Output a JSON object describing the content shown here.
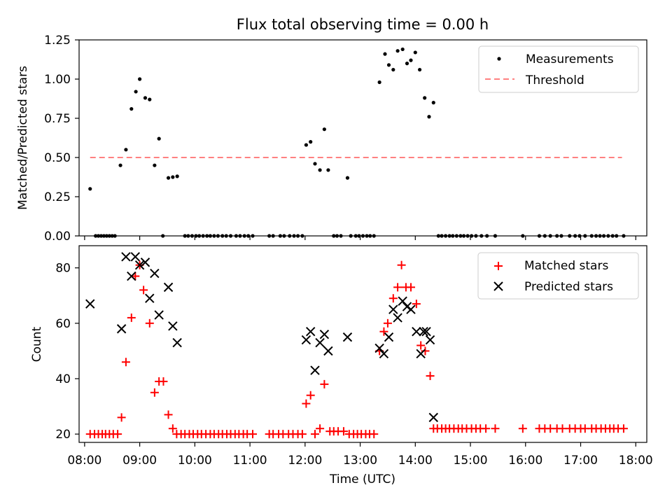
{
  "chart_data": [
    {
      "type": "scatter",
      "title": "Flux total observing time = 0.00 h",
      "xlabel": "",
      "ylabel": "Matched/Predicted stars",
      "xlim": [
        7.9,
        18.2
      ],
      "ylim": [
        0,
        1.25
      ],
      "yticks": [
        "0.00",
        "0.25",
        "0.50",
        "0.75",
        "1.00",
        "1.25"
      ],
      "legend": {
        "position": "top-right",
        "entries": [
          "Measurements",
          "Threshold"
        ]
      },
      "threshold": {
        "name": "Threshold",
        "value": 0.5,
        "x_range": [
          8.1,
          17.75
        ],
        "color": "#ff8080"
      },
      "series": [
        {
          "name": "Measurements",
          "color": "#000000",
          "points": [
            [
              8.1,
              0.3
            ],
            [
              8.2,
              0.0
            ],
            [
              8.25,
              0.0
            ],
            [
              8.3,
              0.0
            ],
            [
              8.35,
              0.0
            ],
            [
              8.4,
              0.0
            ],
            [
              8.45,
              0.0
            ],
            [
              8.5,
              0.0
            ],
            [
              8.55,
              0.0
            ],
            [
              8.65,
              0.45
            ],
            [
              8.75,
              0.55
            ],
            [
              8.85,
              0.81
            ],
            [
              8.93,
              0.92
            ],
            [
              9.0,
              1.0
            ],
            [
              9.1,
              0.88
            ],
            [
              9.18,
              0.87
            ],
            [
              9.27,
              0.45
            ],
            [
              9.35,
              0.62
            ],
            [
              9.42,
              0.0
            ],
            [
              9.52,
              0.37
            ],
            [
              9.6,
              0.375
            ],
            [
              9.68,
              0.38
            ],
            [
              9.82,
              0.0
            ],
            [
              9.88,
              0.0
            ],
            [
              9.95,
              0.0
            ],
            [
              10.02,
              0.0
            ],
            [
              10.08,
              0.0
            ],
            [
              10.15,
              0.0
            ],
            [
              10.22,
              0.0
            ],
            [
              10.28,
              0.0
            ],
            [
              10.35,
              0.0
            ],
            [
              10.42,
              0.0
            ],
            [
              10.5,
              0.0
            ],
            [
              10.57,
              0.0
            ],
            [
              10.65,
              0.0
            ],
            [
              10.75,
              0.0
            ],
            [
              10.82,
              0.0
            ],
            [
              10.9,
              0.0
            ],
            [
              10.97,
              0.0
            ],
            [
              11.05,
              0.0
            ],
            [
              11.35,
              0.0
            ],
            [
              11.42,
              0.0
            ],
            [
              11.55,
              0.0
            ],
            [
              11.62,
              0.0
            ],
            [
              11.72,
              0.0
            ],
            [
              11.8,
              0.0
            ],
            [
              11.87,
              0.0
            ],
            [
              11.95,
              0.0
            ],
            [
              12.02,
              0.58
            ],
            [
              12.1,
              0.6
            ],
            [
              12.18,
              0.46
            ],
            [
              12.27,
              0.42
            ],
            [
              12.35,
              0.68
            ],
            [
              12.42,
              0.42
            ],
            [
              12.52,
              0.0
            ],
            [
              12.58,
              0.0
            ],
            [
              12.65,
              0.0
            ],
            [
              12.77,
              0.37
            ],
            [
              12.83,
              0.0
            ],
            [
              12.92,
              0.0
            ],
            [
              12.98,
              0.0
            ],
            [
              13.05,
              0.0
            ],
            [
              13.12,
              0.0
            ],
            [
              13.18,
              0.0
            ],
            [
              13.25,
              0.0
            ],
            [
              13.35,
              0.98
            ],
            [
              13.45,
              1.16
            ],
            [
              13.52,
              1.09
            ],
            [
              13.6,
              1.06
            ],
            [
              13.68,
              1.18
            ],
            [
              13.77,
              1.19
            ],
            [
              13.85,
              1.1
            ],
            [
              13.92,
              1.12
            ],
            [
              14.0,
              1.17
            ],
            [
              14.08,
              1.06
            ],
            [
              14.17,
              0.88
            ],
            [
              14.25,
              0.76
            ],
            [
              14.33,
              0.85
            ],
            [
              14.42,
              0.0
            ],
            [
              14.48,
              0.0
            ],
            [
              14.55,
              0.0
            ],
            [
              14.62,
              0.0
            ],
            [
              14.68,
              0.0
            ],
            [
              14.75,
              0.0
            ],
            [
              14.82,
              0.0
            ],
            [
              14.88,
              0.0
            ],
            [
              14.95,
              0.0
            ],
            [
              15.02,
              0.0
            ],
            [
              15.1,
              0.0
            ],
            [
              15.2,
              0.0
            ],
            [
              15.3,
              0.0
            ],
            [
              15.45,
              0.0
            ],
            [
              15.95,
              0.0
            ],
            [
              16.25,
              0.0
            ],
            [
              16.35,
              0.0
            ],
            [
              16.45,
              0.0
            ],
            [
              16.57,
              0.0
            ],
            [
              16.65,
              0.0
            ],
            [
              16.8,
              0.0
            ],
            [
              16.9,
              0.0
            ],
            [
              16.98,
              0.0
            ],
            [
              17.08,
              0.0
            ],
            [
              17.2,
              0.0
            ],
            [
              17.28,
              0.0
            ],
            [
              17.35,
              0.0
            ],
            [
              17.42,
              0.0
            ],
            [
              17.5,
              0.0
            ],
            [
              17.58,
              0.0
            ],
            [
              17.65,
              0.0
            ],
            [
              17.78,
              0.0
            ]
          ]
        }
      ]
    },
    {
      "type": "scatter",
      "title": "",
      "xlabel": "Time (UTC)",
      "ylabel": "Count",
      "xlim": [
        7.9,
        18.2
      ],
      "ylim": [
        17,
        88
      ],
      "yticks": [
        "20",
        "40",
        "60",
        "80"
      ],
      "xticks": [
        "08:00",
        "09:00",
        "10:00",
        "11:00",
        "12:00",
        "13:00",
        "14:00",
        "15:00",
        "16:00",
        "17:00",
        "18:00"
      ],
      "legend": {
        "position": "top-right",
        "entries": [
          "Matched stars",
          "Predicted stars"
        ]
      },
      "series": [
        {
          "name": "Matched stars",
          "marker": "plus",
          "color": "#ff0000",
          "points": [
            [
              8.1,
              20
            ],
            [
              8.18,
              20
            ],
            [
              8.25,
              20
            ],
            [
              8.32,
              20
            ],
            [
              8.38,
              20
            ],
            [
              8.45,
              20
            ],
            [
              8.52,
              20
            ],
            [
              8.6,
              20
            ],
            [
              8.67,
              26
            ],
            [
              8.75,
              46
            ],
            [
              8.85,
              62
            ],
            [
              8.92,
              77
            ],
            [
              9.0,
              81
            ],
            [
              9.07,
              72
            ],
            [
              9.18,
              60
            ],
            [
              9.27,
              35
            ],
            [
              9.35,
              39
            ],
            [
              9.43,
              39
            ],
            [
              9.52,
              27
            ],
            [
              9.6,
              22
            ],
            [
              9.67,
              20
            ],
            [
              9.75,
              20
            ],
            [
              9.82,
              20
            ],
            [
              9.9,
              20
            ],
            [
              9.97,
              20
            ],
            [
              10.05,
              20
            ],
            [
              10.12,
              20
            ],
            [
              10.2,
              20
            ],
            [
              10.28,
              20
            ],
            [
              10.35,
              20
            ],
            [
              10.43,
              20
            ],
            [
              10.5,
              20
            ],
            [
              10.58,
              20
            ],
            [
              10.65,
              20
            ],
            [
              10.73,
              20
            ],
            [
              10.8,
              20
            ],
            [
              10.88,
              20
            ],
            [
              10.95,
              20
            ],
            [
              11.05,
              20
            ],
            [
              11.35,
              20
            ],
            [
              11.42,
              20
            ],
            [
              11.52,
              20
            ],
            [
              11.6,
              20
            ],
            [
              11.7,
              20
            ],
            [
              11.78,
              20
            ],
            [
              11.87,
              20
            ],
            [
              11.95,
              20
            ],
            [
              12.02,
              31
            ],
            [
              12.1,
              34
            ],
            [
              12.18,
              20
            ],
            [
              12.27,
              22
            ],
            [
              12.35,
              38
            ],
            [
              12.45,
              21
            ],
            [
              12.52,
              21
            ],
            [
              12.6,
              21
            ],
            [
              12.7,
              21
            ],
            [
              12.8,
              20
            ],
            [
              12.88,
              20
            ],
            [
              12.95,
              20
            ],
            [
              13.02,
              20
            ],
            [
              13.1,
              20
            ],
            [
              13.17,
              20
            ],
            [
              13.25,
              20
            ],
            [
              13.35,
              50
            ],
            [
              13.43,
              57
            ],
            [
              13.5,
              60
            ],
            [
              13.6,
              69
            ],
            [
              13.68,
              73
            ],
            [
              13.75,
              81
            ],
            [
              13.83,
              73
            ],
            [
              13.92,
              73
            ],
            [
              14.02,
              67
            ],
            [
              14.1,
              52
            ],
            [
              14.18,
              50
            ],
            [
              14.27,
              41
            ],
            [
              14.33,
              22
            ],
            [
              14.4,
              22
            ],
            [
              14.48,
              22
            ],
            [
              14.55,
              22
            ],
            [
              14.62,
              22
            ],
            [
              14.7,
              22
            ],
            [
              14.78,
              22
            ],
            [
              14.85,
              22
            ],
            [
              14.93,
              22
            ],
            [
              15.02,
              22
            ],
            [
              15.1,
              22
            ],
            [
              15.18,
              22
            ],
            [
              15.28,
              22
            ],
            [
              15.45,
              22
            ],
            [
              15.95,
              22
            ],
            [
              16.25,
              22
            ],
            [
              16.35,
              22
            ],
            [
              16.45,
              22
            ],
            [
              16.57,
              22
            ],
            [
              16.67,
              22
            ],
            [
              16.8,
              22
            ],
            [
              16.9,
              22
            ],
            [
              17.0,
              22
            ],
            [
              17.08,
              22
            ],
            [
              17.2,
              22
            ],
            [
              17.28,
              22
            ],
            [
              17.37,
              22
            ],
            [
              17.45,
              22
            ],
            [
              17.53,
              22
            ],
            [
              17.6,
              22
            ],
            [
              17.68,
              22
            ],
            [
              17.78,
              22
            ]
          ]
        },
        {
          "name": "Predicted stars",
          "marker": "x",
          "color": "#000000",
          "points": [
            [
              8.1,
              67
            ],
            [
              8.67,
              58
            ],
            [
              8.75,
              84
            ],
            [
              8.85,
              77
            ],
            [
              8.92,
              84
            ],
            [
              9.0,
              81
            ],
            [
              9.1,
              82
            ],
            [
              9.18,
              69
            ],
            [
              9.27,
              78
            ],
            [
              9.35,
              63
            ],
            [
              9.52,
              73
            ],
            [
              9.6,
              59
            ],
            [
              9.68,
              53
            ],
            [
              12.02,
              54
            ],
            [
              12.1,
              57
            ],
            [
              12.18,
              43
            ],
            [
              12.27,
              53
            ],
            [
              12.35,
              56
            ],
            [
              12.42,
              50
            ],
            [
              12.77,
              55
            ],
            [
              13.35,
              51
            ],
            [
              13.43,
              49
            ],
            [
              13.52,
              55
            ],
            [
              13.6,
              65
            ],
            [
              13.68,
              62
            ],
            [
              13.77,
              68
            ],
            [
              13.85,
              66
            ],
            [
              13.92,
              65
            ],
            [
              14.02,
              57
            ],
            [
              14.1,
              49
            ],
            [
              14.15,
              57
            ],
            [
              14.2,
              57
            ],
            [
              14.27,
              54
            ],
            [
              14.33,
              26
            ]
          ]
        }
      ]
    }
  ]
}
